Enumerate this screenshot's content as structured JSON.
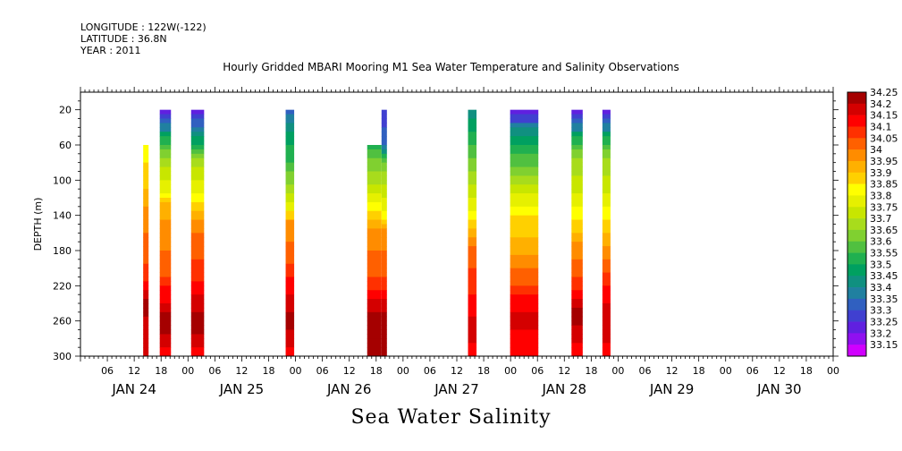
{
  "header": {
    "longitude": "LONGITUDE : 122W(-122)",
    "latitude": "LATITUDE : 36.8N",
    "year": "YEAR : 2011"
  },
  "chart_data": {
    "type": "heatmap",
    "title": "Hourly Gridded MBARI Mooring M1 Sea Water Temperature and Salinity Observations",
    "bottom_title": "Sea Water Salinity",
    "ylabel": "DEPTH (m)",
    "xlabel": "",
    "y_axis": {
      "min": 0,
      "max": 300,
      "inverted": true,
      "ticks": [
        20,
        60,
        100,
        140,
        180,
        220,
        260,
        300
      ]
    },
    "x_axis": {
      "start_hour": 0,
      "end_hour": 168,
      "hour_ticks": [
        "06",
        "12",
        "18",
        "00",
        "06",
        "12",
        "18",
        "00",
        "06",
        "12",
        "18",
        "00",
        "06",
        "12",
        "18",
        "00",
        "06",
        "12",
        "18",
        "00",
        "06",
        "12",
        "18",
        "00",
        "06",
        "12",
        "18",
        "00"
      ],
      "day_labels": [
        "JAN 24",
        "JAN 25",
        "JAN 26",
        "JAN 27",
        "JAN 28",
        "JAN 29",
        "JAN 30"
      ]
    },
    "colorbar": {
      "levels": [
        "34.25",
        "34.2",
        "34.15",
        "34.1",
        "34.05",
        "34",
        "33.95",
        "33.9",
        "33.85",
        "33.8",
        "33.75",
        "33.7",
        "33.65",
        "33.6",
        "33.55",
        "33.5",
        "33.45",
        "33.4",
        "33.35",
        "33.3",
        "33.25",
        "33.2",
        "33.15"
      ],
      "colors": [
        "#a50000",
        "#d40000",
        "#ff0000",
        "#ff3000",
        "#ff6000",
        "#ff8c00",
        "#ffb000",
        "#ffd000",
        "#ffff00",
        "#e6f000",
        "#c8e600",
        "#a8dc1c",
        "#80d030",
        "#50c040",
        "#20b050",
        "#00a060",
        "#109080",
        "#2080a0",
        "#3060c0",
        "#4040d0",
        "#6020e0",
        "#9010f0",
        "#d000ff"
      ]
    },
    "columns": [
      {
        "start_hour": 14.0,
        "end_hour": 15.2,
        "top_depth": 60,
        "profile": [
          [
            60,
            33.85
          ],
          [
            100,
            33.9
          ],
          [
            140,
            34.0
          ],
          [
            180,
            34.05
          ],
          [
            210,
            34.1
          ],
          [
            240,
            34.25
          ],
          [
            270,
            34.2
          ],
          [
            300,
            34.2
          ]
        ]
      },
      {
        "start_hour": 17.7,
        "end_hour": 20.2,
        "top_depth": 20,
        "profile": [
          [
            20,
            33.2
          ],
          [
            35,
            33.35
          ],
          [
            55,
            33.55
          ],
          [
            80,
            33.7
          ],
          [
            110,
            33.8
          ],
          [
            130,
            33.95
          ],
          [
            160,
            34.0
          ],
          [
            200,
            34.05
          ],
          [
            230,
            34.15
          ],
          [
            260,
            34.25
          ],
          [
            285,
            34.2
          ],
          [
            300,
            34.15
          ]
        ]
      },
      {
        "start_hour": 24.7,
        "end_hour": 27.6,
        "top_depth": 20,
        "profile": [
          [
            20,
            33.2
          ],
          [
            35,
            33.35
          ],
          [
            55,
            33.5
          ],
          [
            80,
            33.7
          ],
          [
            110,
            33.8
          ],
          [
            140,
            33.95
          ],
          [
            170,
            34.05
          ],
          [
            210,
            34.1
          ],
          [
            240,
            34.2
          ],
          [
            260,
            34.25
          ],
          [
            285,
            34.2
          ],
          [
            300,
            34.15
          ]
        ]
      },
      {
        "start_hour": 45.8,
        "end_hour": 47.7,
        "top_depth": 20,
        "profile": [
          [
            20,
            33.35
          ],
          [
            40,
            33.45
          ],
          [
            70,
            33.55
          ],
          [
            100,
            33.65
          ],
          [
            130,
            33.8
          ],
          [
            150,
            34.0
          ],
          [
            190,
            34.05
          ],
          [
            215,
            34.15
          ],
          [
            240,
            34.2
          ],
          [
            260,
            34.25
          ],
          [
            280,
            34.2
          ],
          [
            300,
            34.15
          ]
        ]
      },
      {
        "start_hour": 64.0,
        "end_hour": 67.2,
        "top_depth": 60,
        "profile": [
          [
            60,
            33.55
          ],
          [
            80,
            33.65
          ],
          [
            100,
            33.7
          ],
          [
            120,
            33.8
          ],
          [
            140,
            33.9
          ],
          [
            160,
            34.0
          ],
          [
            200,
            34.05
          ],
          [
            220,
            34.1
          ],
          [
            240,
            34.2
          ],
          [
            260,
            34.25
          ],
          [
            300,
            34.25
          ]
        ]
      },
      {
        "start_hour": 67.2,
        "end_hour": 68.4,
        "top_depth": 20,
        "profile": [
          [
            20,
            33.3
          ],
          [
            60,
            33.35
          ],
          [
            80,
            33.65
          ],
          [
            100,
            33.7
          ],
          [
            140,
            33.85
          ],
          [
            160,
            34.0
          ],
          [
            200,
            34.05
          ],
          [
            220,
            34.1
          ],
          [
            240,
            34.2
          ],
          [
            260,
            34.25
          ],
          [
            300,
            34.25
          ]
        ]
      },
      {
        "start_hour": 86.5,
        "end_hour": 88.4,
        "top_depth": 20,
        "profile": [
          [
            20,
            33.45
          ],
          [
            40,
            33.5
          ],
          [
            70,
            33.6
          ],
          [
            100,
            33.7
          ],
          [
            130,
            33.8
          ],
          [
            150,
            33.9
          ],
          [
            180,
            34.05
          ],
          [
            220,
            34.1
          ],
          [
            240,
            34.15
          ],
          [
            270,
            34.2
          ],
          [
            300,
            34.15
          ]
        ]
      },
      {
        "start_hour": 95.9,
        "end_hour": 102.2,
        "top_depth": 20,
        "profile": [
          [
            20,
            33.2
          ],
          [
            30,
            33.3
          ],
          [
            45,
            33.45
          ],
          [
            65,
            33.55
          ],
          [
            90,
            33.65
          ],
          [
            120,
            33.8
          ],
          [
            150,
            33.9
          ],
          [
            180,
            33.95
          ],
          [
            210,
            34.05
          ],
          [
            240,
            34.15
          ],
          [
            260,
            34.2
          ],
          [
            280,
            34.15
          ],
          [
            300,
            34.15
          ]
        ]
      },
      {
        "start_hour": 109.6,
        "end_hour": 112.1,
        "top_depth": 20,
        "profile": [
          [
            20,
            33.2
          ],
          [
            35,
            33.35
          ],
          [
            55,
            33.55
          ],
          [
            80,
            33.7
          ],
          [
            110,
            33.75
          ],
          [
            150,
            33.9
          ],
          [
            180,
            34.0
          ],
          [
            220,
            34.1
          ],
          [
            240,
            34.2
          ],
          [
            255,
            34.25
          ],
          [
            275,
            34.2
          ],
          [
            300,
            34.15
          ]
        ]
      },
      {
        "start_hour": 116.5,
        "end_hour": 118.3,
        "top_depth": 20,
        "profile": [
          [
            20,
            33.25
          ],
          [
            35,
            33.35
          ],
          [
            55,
            33.55
          ],
          [
            80,
            33.7
          ],
          [
            110,
            33.75
          ],
          [
            140,
            33.85
          ],
          [
            170,
            33.95
          ],
          [
            200,
            34.05
          ],
          [
            225,
            34.15
          ],
          [
            250,
            34.2
          ],
          [
            270,
            34.2
          ],
          [
            300,
            34.15
          ]
        ]
      }
    ]
  }
}
